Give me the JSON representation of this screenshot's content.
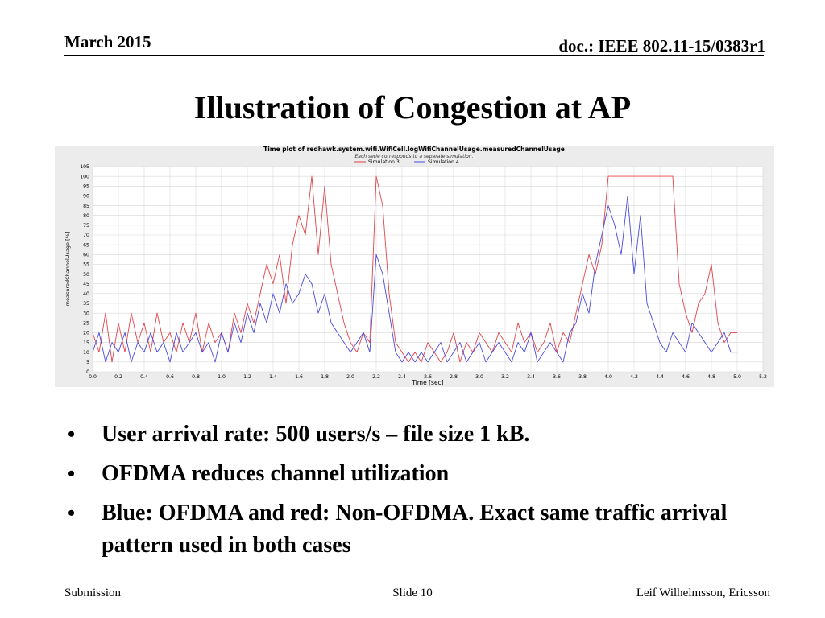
{
  "header": {
    "date": "March 2015",
    "doc": "doc.: IEEE 802.11-15/0383r1"
  },
  "slide": {
    "title": "Illustration of Congestion at AP"
  },
  "bullets": [
    "User arrival rate: 500 users/s – file size 1 kB.",
    "OFDMA reduces channel utilization",
    "Blue: OFDMA  and red: Non-OFDMA. Exact same traffic arrival pattern used in both cases"
  ],
  "footer": {
    "left": "Submission",
    "center": "Slide 10",
    "right": "Leif Wilhelmsson, Ericsson"
  },
  "colors": {
    "series_red": "#e0454b",
    "series_blue": "#4a4ae0",
    "chart_bg": "#ececec",
    "plot_bg": "#ffffff",
    "grid": "#d8d8d8"
  },
  "chart_data": {
    "type": "line",
    "title": "Time plot of redhawk.system.wifi.WifiCell.logWifiChannelUsage.measuredChannelUsage",
    "subtitle": "Each serie corresponds to a separate simulation.",
    "xlabel": "Time [sec]",
    "ylabel": "measuredChannelUsage [%]",
    "xlim": [
      0.0,
      5.2
    ],
    "ylim": [
      0,
      105
    ],
    "xticks": [
      "0.0",
      "0.2",
      "0.4",
      "0.6",
      "0.8",
      "1.0",
      "1.2",
      "1.4",
      "1.6",
      "1.8",
      "2.0",
      "2.2",
      "2.4",
      "2.6",
      "2.8",
      "3.0",
      "3.2",
      "3.4",
      "3.6",
      "3.8",
      "4.0",
      "4.2",
      "4.4",
      "4.6",
      "4.8",
      "5.0",
      "5.2"
    ],
    "yticks": [
      "0",
      "5",
      "10",
      "15",
      "20",
      "25",
      "30",
      "35",
      "40",
      "45",
      "50",
      "55",
      "60",
      "65",
      "70",
      "75",
      "80",
      "85",
      "90",
      "95",
      "100",
      "105"
    ],
    "grid": true,
    "legend_position": "top-center",
    "series": [
      {
        "name": "Simulation 3",
        "color": "#e0454b",
        "x": [
          0.0,
          0.05,
          0.1,
          0.15,
          0.2,
          0.25,
          0.3,
          0.35,
          0.4,
          0.45,
          0.5,
          0.55,
          0.6,
          0.65,
          0.7,
          0.75,
          0.8,
          0.85,
          0.9,
          0.95,
          1.0,
          1.05,
          1.1,
          1.15,
          1.2,
          1.25,
          1.3,
          1.35,
          1.4,
          1.45,
          1.5,
          1.55,
          1.6,
          1.65,
          1.7,
          1.75,
          1.8,
          1.85,
          1.9,
          1.95,
          2.0,
          2.05,
          2.1,
          2.15,
          2.2,
          2.25,
          2.3,
          2.35,
          2.4,
          2.45,
          2.5,
          2.55,
          2.6,
          2.65,
          2.7,
          2.75,
          2.8,
          2.85,
          2.9,
          2.95,
          3.0,
          3.05,
          3.1,
          3.15,
          3.2,
          3.25,
          3.3,
          3.35,
          3.4,
          3.45,
          3.5,
          3.55,
          3.6,
          3.65,
          3.7,
          3.75,
          3.8,
          3.85,
          3.9,
          3.95,
          4.0,
          4.05,
          4.1,
          4.15,
          4.2,
          4.25,
          4.3,
          4.35,
          4.4,
          4.45,
          4.5,
          4.55,
          4.6,
          4.65,
          4.7,
          4.75,
          4.8,
          4.85,
          4.9,
          4.95,
          5.0
        ],
        "values": [
          20,
          10,
          30,
          5,
          25,
          10,
          30,
          15,
          25,
          10,
          30,
          15,
          20,
          10,
          25,
          15,
          30,
          10,
          25,
          15,
          20,
          10,
          30,
          20,
          35,
          25,
          40,
          55,
          45,
          60,
          35,
          65,
          80,
          70,
          100,
          60,
          95,
          55,
          40,
          25,
          15,
          10,
          20,
          15,
          100,
          85,
          40,
          15,
          10,
          5,
          10,
          5,
          15,
          10,
          5,
          10,
          20,
          5,
          15,
          10,
          20,
          15,
          10,
          20,
          15,
          10,
          25,
          15,
          20,
          10,
          15,
          25,
          10,
          20,
          15,
          30,
          45,
          60,
          50,
          65,
          100,
          100,
          100,
          100,
          100,
          100,
          100,
          100,
          100,
          100,
          100,
          45,
          30,
          20,
          35,
          40,
          55,
          25,
          15,
          20,
          20
        ]
      },
      {
        "name": "Simulation 4",
        "color": "#4a4ae0",
        "x": [
          0.0,
          0.05,
          0.1,
          0.15,
          0.2,
          0.25,
          0.3,
          0.35,
          0.4,
          0.45,
          0.5,
          0.55,
          0.6,
          0.65,
          0.7,
          0.75,
          0.8,
          0.85,
          0.9,
          0.95,
          1.0,
          1.05,
          1.1,
          1.15,
          1.2,
          1.25,
          1.3,
          1.35,
          1.4,
          1.45,
          1.5,
          1.55,
          1.6,
          1.65,
          1.7,
          1.75,
          1.8,
          1.85,
          1.9,
          1.95,
          2.0,
          2.05,
          2.1,
          2.15,
          2.2,
          2.25,
          2.3,
          2.35,
          2.4,
          2.45,
          2.5,
          2.55,
          2.6,
          2.65,
          2.7,
          2.75,
          2.8,
          2.85,
          2.9,
          2.95,
          3.0,
          3.05,
          3.1,
          3.15,
          3.2,
          3.25,
          3.3,
          3.35,
          3.4,
          3.45,
          3.5,
          3.55,
          3.6,
          3.65,
          3.7,
          3.75,
          3.8,
          3.85,
          3.9,
          3.95,
          4.0,
          4.05,
          4.1,
          4.15,
          4.2,
          4.25,
          4.3,
          4.35,
          4.4,
          4.45,
          4.5,
          4.55,
          4.6,
          4.65,
          4.7,
          4.75,
          4.8,
          4.85,
          4.9,
          4.95,
          5.0
        ],
        "values": [
          10,
          20,
          5,
          15,
          10,
          20,
          5,
          15,
          10,
          20,
          10,
          15,
          5,
          20,
          10,
          15,
          20,
          10,
          15,
          5,
          20,
          10,
          25,
          15,
          30,
          20,
          35,
          25,
          40,
          30,
          45,
          35,
          40,
          50,
          45,
          30,
          40,
          25,
          20,
          15,
          10,
          15,
          20,
          10,
          60,
          50,
          30,
          10,
          5,
          10,
          5,
          10,
          5,
          10,
          15,
          5,
          10,
          15,
          5,
          10,
          15,
          5,
          10,
          15,
          10,
          5,
          15,
          10,
          20,
          5,
          10,
          15,
          10,
          5,
          20,
          25,
          40,
          30,
          55,
          70,
          85,
          75,
          60,
          90,
          50,
          80,
          35,
          25,
          15,
          10,
          20,
          15,
          10,
          25,
          20,
          15,
          10,
          15,
          20,
          10,
          10
        ]
      }
    ]
  }
}
